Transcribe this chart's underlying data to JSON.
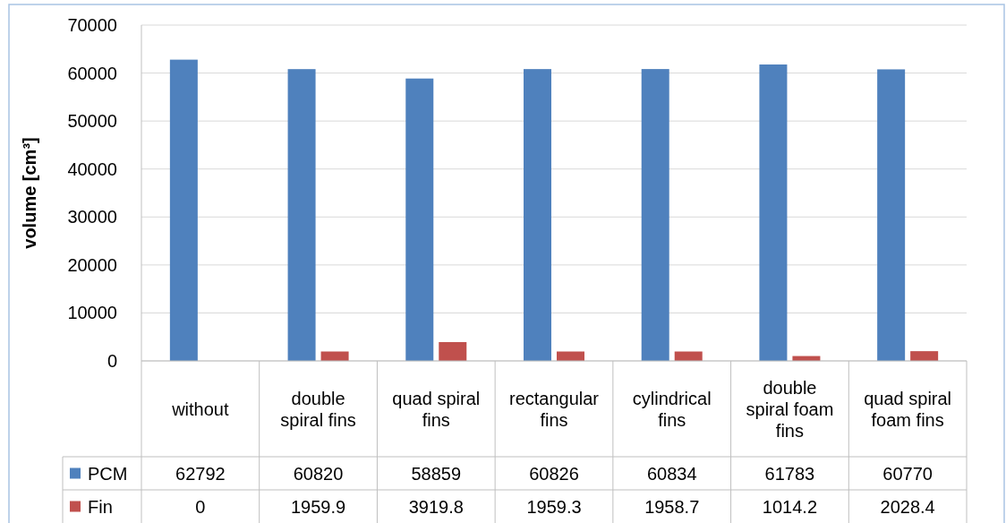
{
  "chart_data": {
    "type": "bar",
    "ylabel": "volume [cm³]",
    "categories": [
      "without",
      "double spiral fins",
      "quad spiral fins",
      "rectangular fins",
      "cylindrical fins",
      "double spiral foam fins",
      "quad spiral foam fins"
    ],
    "series": [
      {
        "name": "PCM",
        "color": "#4f81bd",
        "values": [
          62792,
          60820,
          58859,
          60826,
          60834,
          61783,
          60770
        ]
      },
      {
        "name": "Fin",
        "color": "#c0504d",
        "values": [
          0,
          1959.9,
          3919.8,
          1959.3,
          1958.7,
          1014.2,
          2028.4
        ]
      }
    ],
    "ylim": [
      0,
      70000
    ],
    "yticks": [
      0,
      10000,
      20000,
      30000,
      40000,
      50000,
      60000,
      70000
    ],
    "grid": "y",
    "legend": "bottom left",
    "data_labels": true
  }
}
